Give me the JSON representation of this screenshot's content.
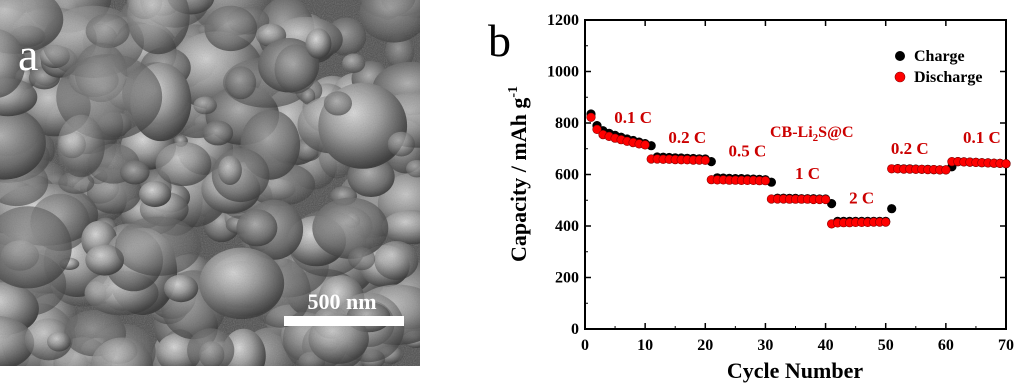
{
  "panel_a": {
    "letter": "a",
    "scale_bar_label": "500 nm"
  },
  "chart_data": {
    "type": "scatter",
    "panel_letter": "b",
    "xlabel": "Cycle Number",
    "ylabel_main": "Capacity / mAh g",
    "ylabel_superscript": "-1",
    "xlim": [
      0,
      70
    ],
    "ylim": [
      0,
      1200
    ],
    "xticks": [
      0,
      10,
      20,
      30,
      40,
      50,
      60,
      70
    ],
    "yticks": [
      0,
      200,
      400,
      600,
      800,
      1000,
      1200
    ],
    "legend_position": "top-right",
    "sample_label_main": "CB-Li",
    "sample_label_sub": "2",
    "sample_label_tail": "S@C",
    "colors": {
      "charge": "#000000",
      "discharge": "#ff0000",
      "annotation": "#cc0000"
    },
    "rate_labels": [
      {
        "text": "0.1 C",
        "x": 8,
        "y": 800
      },
      {
        "text": "0.2 C",
        "x": 17,
        "y": 722
      },
      {
        "text": "0.5 C",
        "x": 27,
        "y": 670
      },
      {
        "text": "1 C",
        "x": 37,
        "y": 582
      },
      {
        "text": "2 C",
        "x": 46,
        "y": 488
      },
      {
        "text": "0.2 C",
        "x": 54,
        "y": 680
      },
      {
        "text": "0.1 C",
        "x": 66,
        "y": 722
      }
    ],
    "series": [
      {
        "name": "Charge",
        "x": [
          1,
          2,
          3,
          4,
          5,
          6,
          7,
          8,
          9,
          10,
          11,
          12,
          13,
          14,
          15,
          16,
          17,
          18,
          19,
          20,
          21,
          22,
          23,
          24,
          25,
          26,
          27,
          28,
          29,
          30,
          31,
          32,
          33,
          34,
          35,
          36,
          37,
          38,
          39,
          40,
          41,
          42,
          43,
          44,
          45,
          46,
          47,
          48,
          49,
          50,
          51,
          52,
          53,
          54,
          55,
          56,
          57,
          58,
          59,
          60,
          61,
          62,
          63,
          64,
          65,
          66,
          67,
          68,
          69,
          70
        ],
        "y": [
          835,
          790,
          770,
          760,
          752,
          745,
          738,
          732,
          726,
          720,
          712,
          668,
          667,
          666,
          665,
          664,
          663,
          662,
          661,
          660,
          650,
          587,
          586,
          585,
          584,
          584,
          583,
          582,
          581,
          580,
          570,
          508,
          508,
          507,
          507,
          506,
          506,
          506,
          505,
          505,
          487,
          418,
          418,
          418,
          418,
          418,
          418,
          418,
          418,
          418,
          467,
          623,
          622,
          622,
          621,
          620,
          620,
          619,
          618,
          618,
          630,
          650,
          649,
          648,
          647,
          646,
          645,
          644,
          643,
          642
        ]
      },
      {
        "name": "Discharge",
        "x": [
          1,
          2,
          3,
          4,
          5,
          6,
          7,
          8,
          9,
          10,
          11,
          12,
          13,
          14,
          15,
          16,
          17,
          18,
          19,
          20,
          21,
          22,
          23,
          24,
          25,
          26,
          27,
          28,
          29,
          30,
          31,
          32,
          33,
          34,
          35,
          36,
          37,
          38,
          39,
          40,
          41,
          42,
          43,
          44,
          45,
          46,
          47,
          48,
          49,
          50,
          51,
          52,
          53,
          54,
          55,
          56,
          57,
          58,
          59,
          60,
          61,
          62,
          63,
          64,
          65,
          66,
          67,
          68,
          69,
          70
        ],
        "y": [
          822,
          775,
          755,
          748,
          741,
          735,
          729,
          724,
          719,
          715,
          660,
          660,
          659,
          659,
          658,
          657,
          657,
          656,
          656,
          655,
          580,
          579,
          579,
          578,
          578,
          577,
          577,
          577,
          576,
          576,
          505,
          505,
          505,
          504,
          504,
          504,
          504,
          503,
          503,
          503,
          408,
          412,
          413,
          413,
          414,
          414,
          414,
          415,
          415,
          415,
          622,
          622,
          621,
          621,
          620,
          620,
          619,
          619,
          618,
          618,
          650,
          650,
          649,
          648,
          647,
          646,
          645,
          644,
          643,
          642
        ]
      }
    ]
  }
}
